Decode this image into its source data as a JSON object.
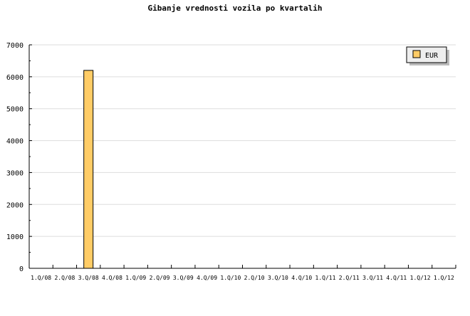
{
  "chart_data": {
    "type": "bar",
    "title": "Gibanje vrednosti vozila po kvartalih",
    "xlabel": "",
    "ylabel": "",
    "categories": [
      "1.Q/08",
      "2.Q/08",
      "3.Q/08",
      "4.Q/08",
      "1.Q/09",
      "2.Q/09",
      "3.Q/09",
      "4.Q/09",
      "1.Q/10",
      "2.Q/10",
      "3.Q/10",
      "4.Q/10",
      "1.Q/11",
      "2.Q/11",
      "3.Q/11",
      "4.Q/11",
      "1.Q/12",
      "1.Q/12"
    ],
    "series": [
      {
        "name": "EUR",
        "values": [
          0,
          0,
          6200,
          0,
          0,
          0,
          0,
          0,
          0,
          0,
          0,
          0,
          0,
          0,
          0,
          0,
          0,
          0
        ],
        "color": "#ffcc66"
      }
    ],
    "ylim": [
      0,
      7000
    ],
    "yticks": [
      0,
      1000,
      2000,
      3000,
      4000,
      5000,
      6000,
      7000
    ],
    "grid": true,
    "legend": "top-right"
  }
}
